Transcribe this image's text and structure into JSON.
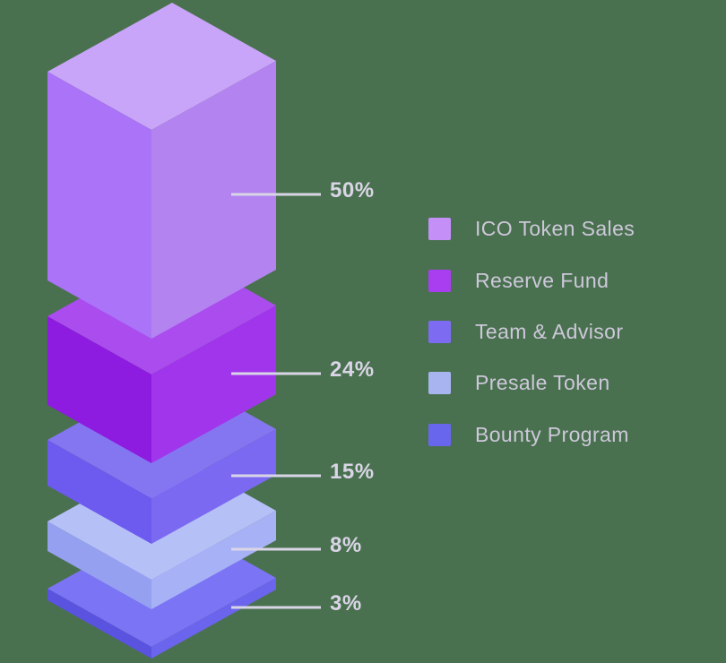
{
  "background_color": "#4a714f",
  "percent_text_color": "#d9d5e6",
  "legend_text_color": "#cdc8da",
  "connector_line_color": "#d8d5e6",
  "chart_data": {
    "type": "bar",
    "variant": "isometric-3d-exploded-stack",
    "title": "",
    "legend_position": "right",
    "categories": [
      "ICO Token Sales",
      "Reserve Fund",
      "Team & Advisor",
      "Presale Token",
      "Bounty Program"
    ],
    "values": [
      50,
      24,
      15,
      8,
      3
    ],
    "series": [
      {
        "label": "ICO Token Sales",
        "value": 50,
        "value_label": "50%",
        "swatch_color": "#c490f8",
        "colors": {
          "top": "#c8a5f8",
          "left": "#aa73f8",
          "right": "#b384f0"
        }
      },
      {
        "label": "Reserve Fund",
        "value": 24,
        "value_label": "24%",
        "swatch_color": "#a83ef0",
        "colors": {
          "top": "#ab4cee",
          "left": "#8d1ce0",
          "right": "#a135ec"
        }
      },
      {
        "label": "Team & Advisor",
        "value": 15,
        "value_label": "15%",
        "swatch_color": "#7d6cf2",
        "colors": {
          "top": "#8476f0",
          "left": "#6d5aee",
          "right": "#7b69f1"
        }
      },
      {
        "label": "Presale Token",
        "value": 8,
        "value_label": "8%",
        "swatch_color": "#a8b4f0",
        "colors": {
          "top": "#b5c0f7",
          "left": "#96a0f0",
          "right": "#a7b1f5"
        }
      },
      {
        "label": "Bounty Program",
        "value": 3,
        "value_label": "3%",
        "swatch_color": "#6966ee",
        "colors": {
          "top": "#7b74f4",
          "left": "#5a53e0",
          "right": "#6b64ec"
        }
      }
    ]
  }
}
